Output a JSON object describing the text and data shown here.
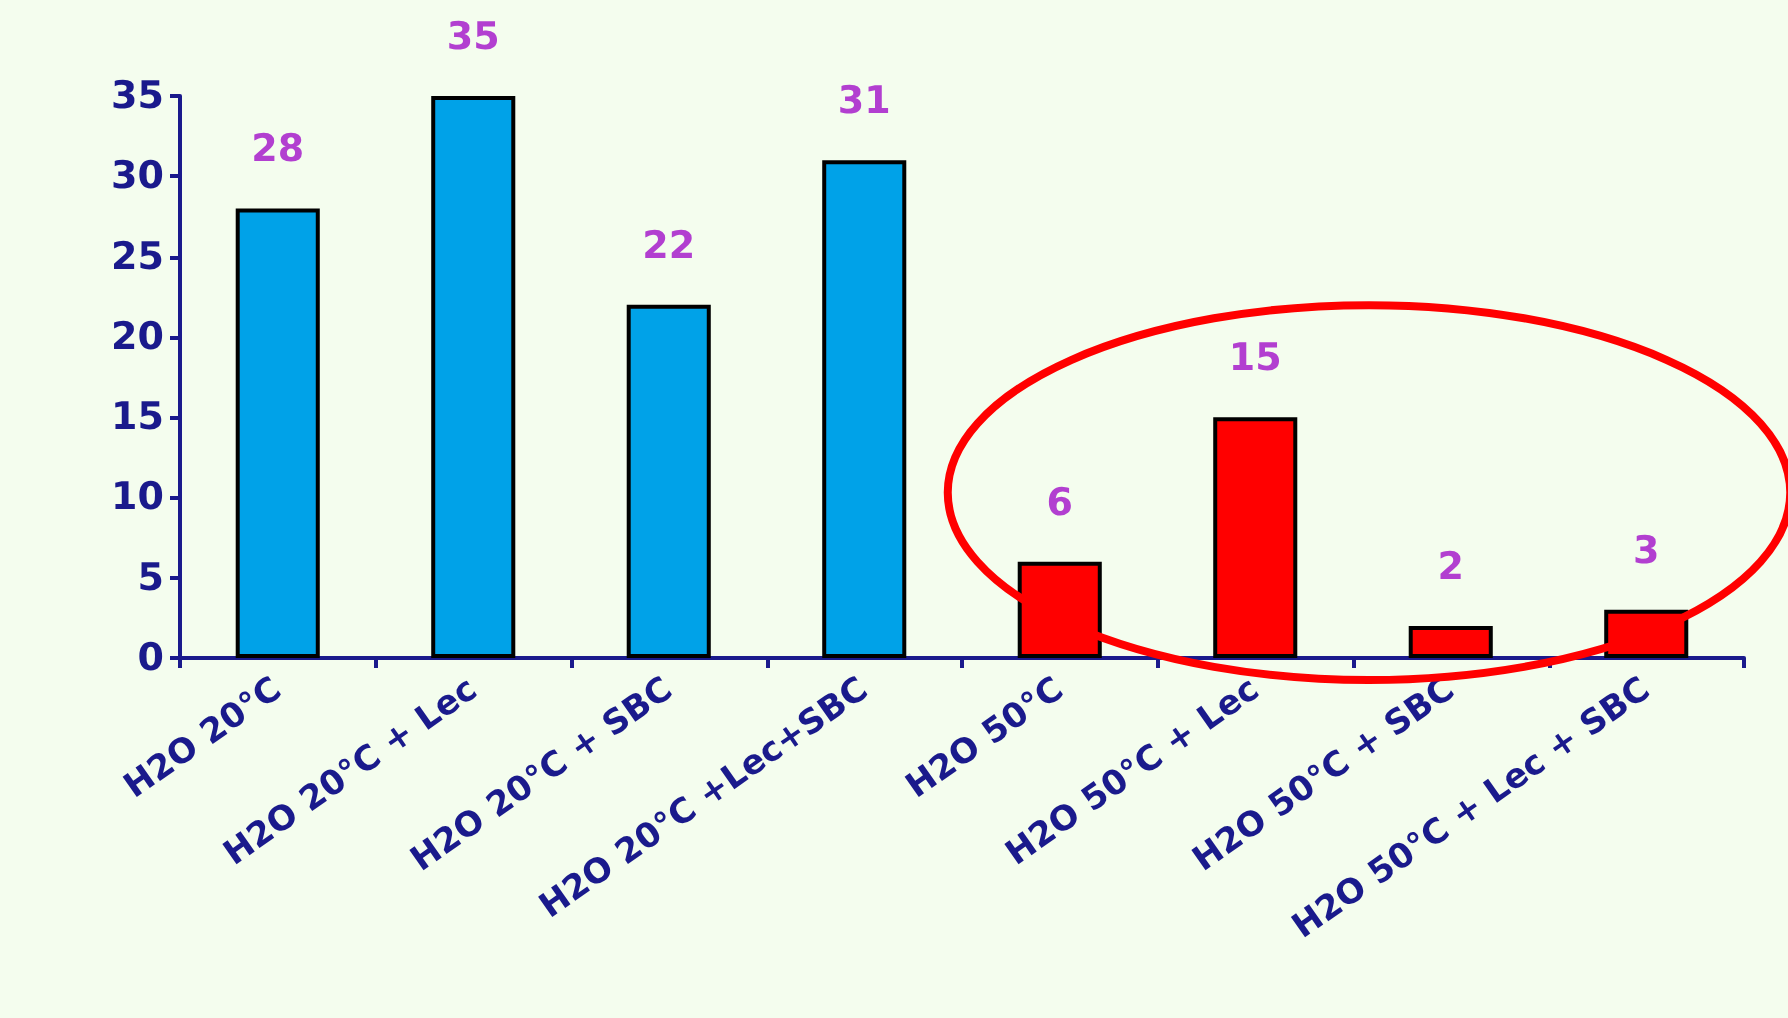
{
  "chart_data": {
    "type": "bar",
    "categories": [
      "H2O 20°C",
      "H2O 20°C + Lec",
      "H2O 20°C + SBC",
      "H2O 20°C +Lec+SBC",
      "H2O 50°C",
      "H2O 50°C + Lec",
      "H2O 50°C + SBC",
      "H2O 50°C + Lec + SBC"
    ],
    "values": [
      28,
      35,
      22,
      31,
      6,
      15,
      2,
      3
    ],
    "colors": [
      "#00a2e8",
      "#00a2e8",
      "#00a2e8",
      "#00a2e8",
      "#ff0000",
      "#ff0000",
      "#ff0000",
      "#ff0000"
    ],
    "ylim": [
      0,
      35
    ],
    "yticks": [
      0,
      5,
      10,
      15,
      20,
      25,
      30,
      35
    ],
    "data_labels": true
  }
}
